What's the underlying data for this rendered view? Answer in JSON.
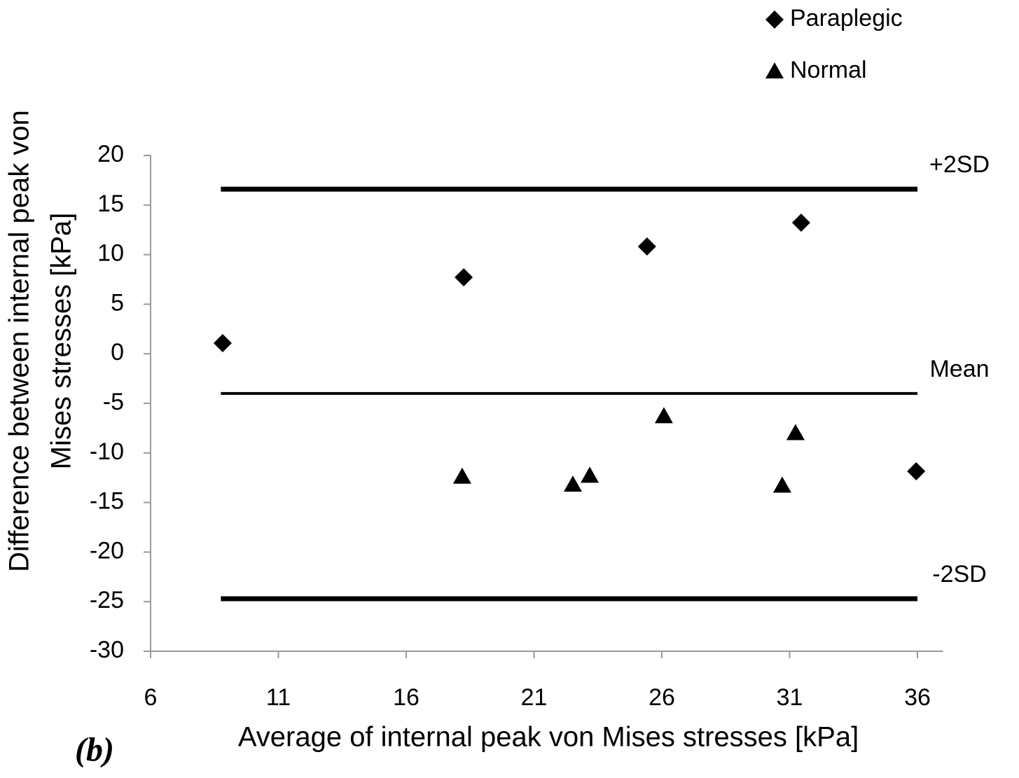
{
  "chart_data": {
    "type": "scatter",
    "xlabel": "Average of internal peak von Mises stresses [kPa]",
    "ylabel": [
      "Difference between internal peak von",
      "Mises stresses [kPa]"
    ],
    "panel_label": "(b)",
    "xlim": [
      6,
      37
    ],
    "xticks": [
      6,
      11,
      16,
      21,
      26,
      31,
      36
    ],
    "ylim": [
      -30,
      20
    ],
    "yticks": [
      -30,
      -25,
      -20,
      -15,
      -10,
      -5,
      0,
      5,
      10,
      15,
      20
    ],
    "legend": "upper right",
    "series": [
      {
        "name": "Paraplegic",
        "marker": "diamond",
        "color": "#000000",
        "x": [
          8.82,
          18.25,
          25.42,
          31.45,
          35.95
        ],
        "values": [
          1.07,
          7.71,
          10.82,
          13.22,
          -11.85
        ]
      },
      {
        "name": "Normal",
        "marker": "triangle",
        "color": "#000000",
        "x": [
          18.19,
          22.52,
          23.18,
          26.08,
          31.23,
          30.71
        ],
        "values": [
          -12.4,
          -13.2,
          -12.3,
          -6.3,
          -8.0,
          -13.3
        ]
      }
    ],
    "reference_lines": [
      {
        "label": "+2SD",
        "value": 16.6,
        "x": [
          8.75,
          36
        ]
      },
      {
        "label": "Mean",
        "value": -4.0,
        "x": [
          8.75,
          36
        ]
      },
      {
        "label": "-2SD",
        "value": -24.7,
        "x": [
          8.75,
          36
        ]
      }
    ]
  }
}
